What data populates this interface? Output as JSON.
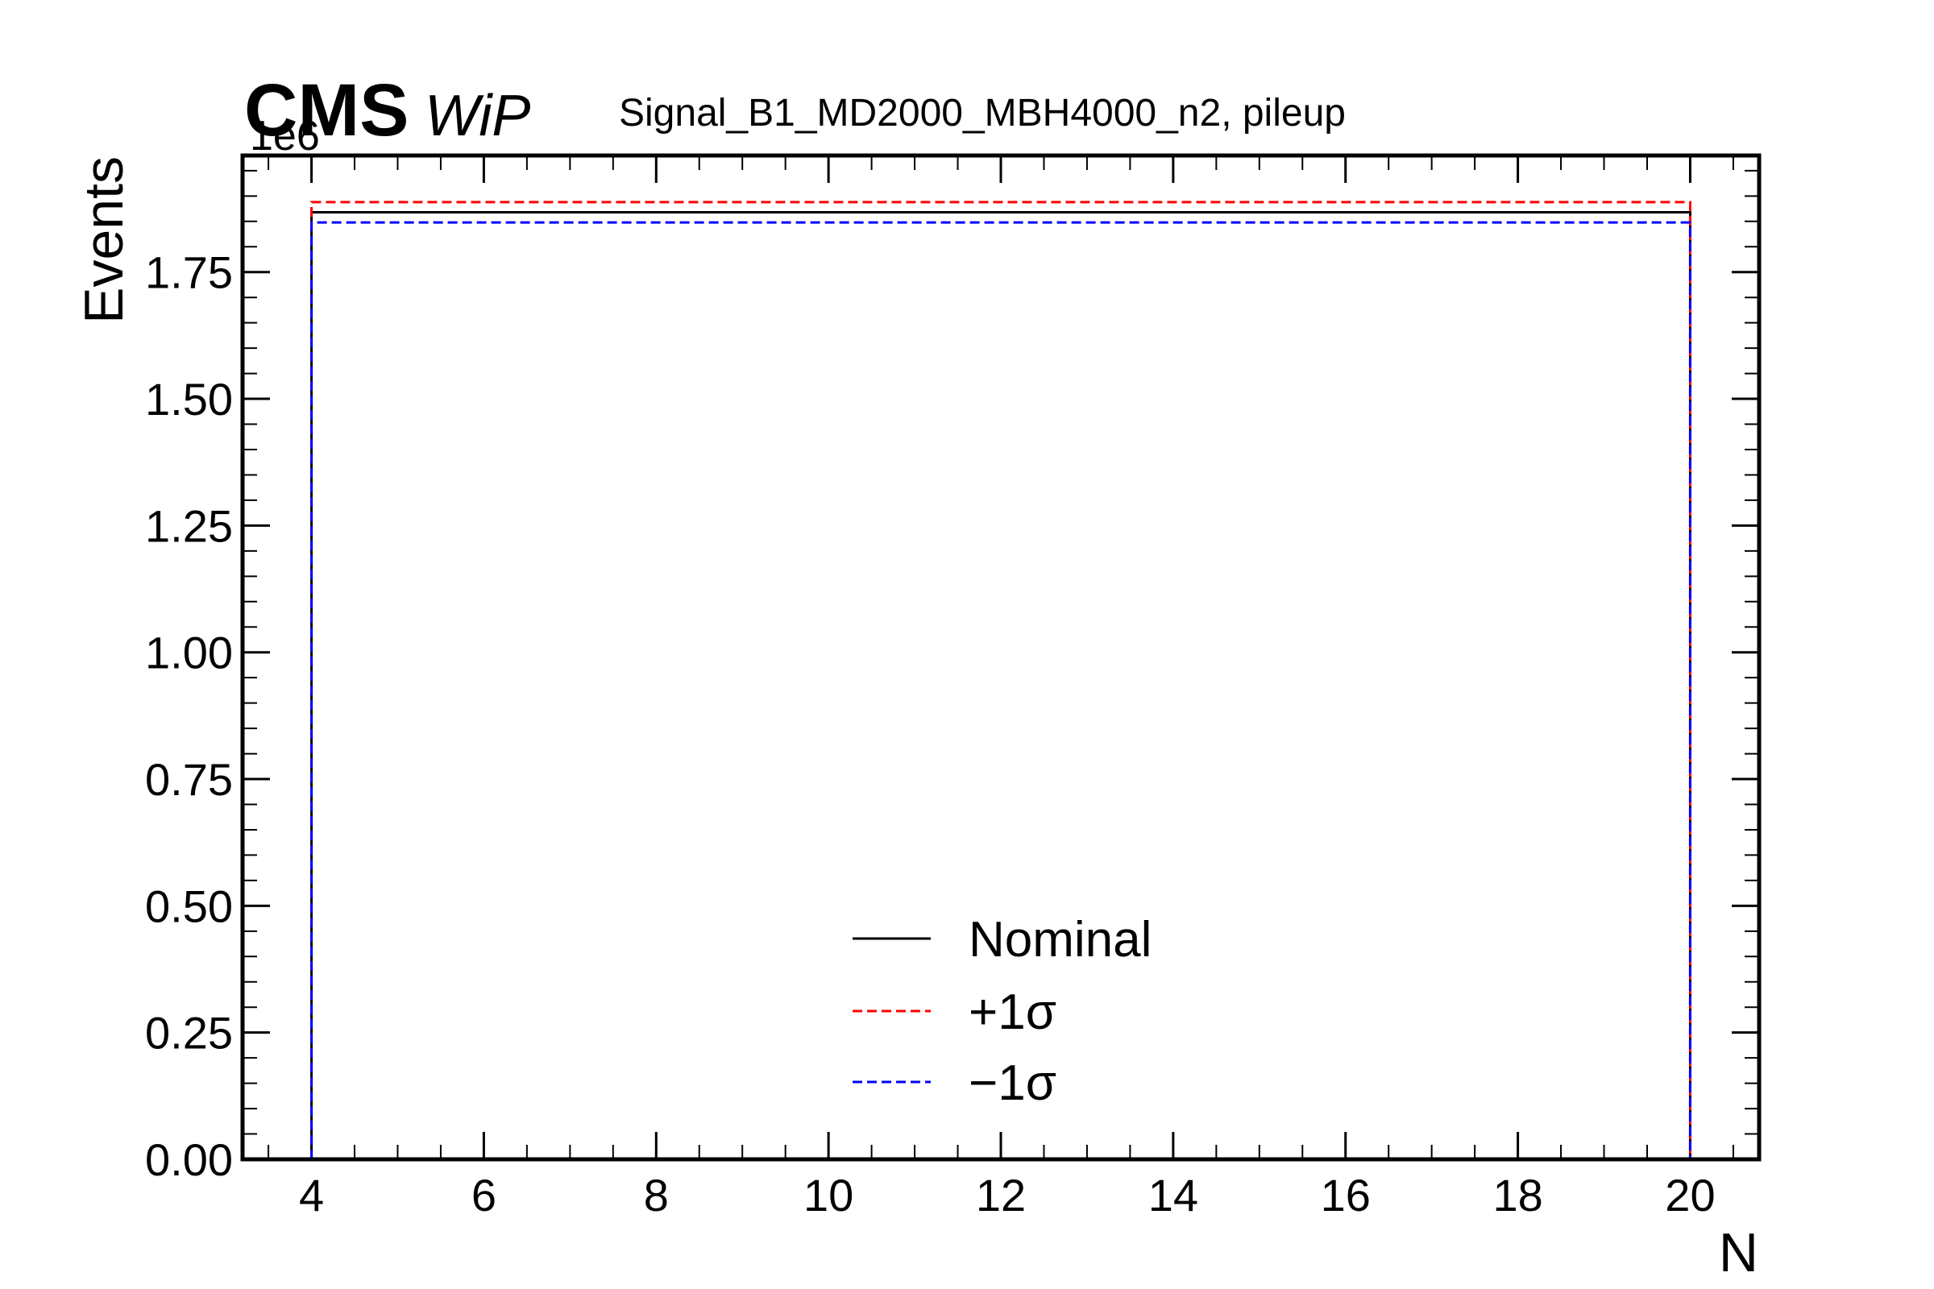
{
  "header": {
    "experiment": "CMS",
    "status": "WiP",
    "title": "Signal_B1_MD2000_MBH4000_n2, pileup"
  },
  "chart_data": {
    "type": "line",
    "drawstyle": "step",
    "xlabel": "N",
    "ylabel": "Events",
    "y_scale_label": "1e6",
    "xlim": [
      3.2,
      20.8
    ],
    "ylim": [
      0,
      1.98
    ],
    "x_ticks": [
      4,
      6,
      8,
      10,
      12,
      14,
      16,
      18,
      20
    ],
    "x_tick_labels": [
      "4",
      "6",
      "8",
      "10",
      "12",
      "14",
      "16",
      "18",
      "20"
    ],
    "y_ticks": [
      0,
      0.25,
      0.5,
      0.75,
      1.0,
      1.25,
      1.5,
      1.75
    ],
    "y_tick_labels": [
      "0.00",
      "0.25",
      "0.50",
      "0.75",
      "1.00",
      "1.25",
      "1.50",
      "1.75"
    ],
    "bin_edges": [
      4,
      20
    ],
    "series": [
      {
        "name": "Nominal",
        "values": [
          1.868
        ],
        "color": "#000000",
        "dash": "solid"
      },
      {
        "name": "+1σ",
        "values": [
          1.888
        ],
        "color": "#ff0000",
        "dash": "dashed"
      },
      {
        "name": "−1σ",
        "values": [
          1.848
        ],
        "color": "#0000ff",
        "dash": "dashed"
      }
    ],
    "legend": {
      "placement": "lower-center",
      "entries": [
        "Nominal",
        "+1σ",
        "−1σ"
      ]
    },
    "grid": false
  }
}
